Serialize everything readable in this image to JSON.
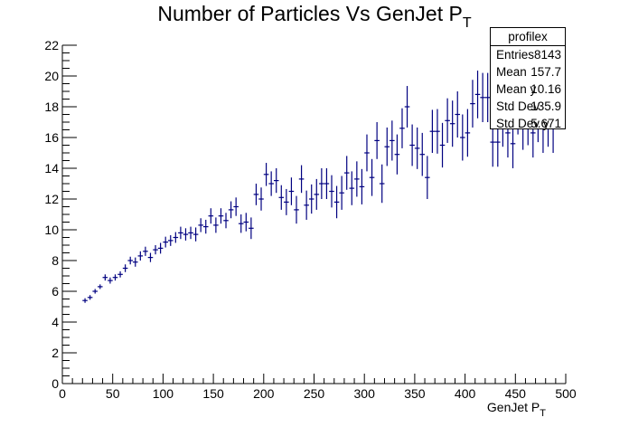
{
  "chart_data": {
    "type": "scatter",
    "title": "Number of Particles Vs GenJet P",
    "title_sub": "T",
    "xlabel": "GenJet P",
    "xlabel_sub": "T",
    "ylabel": "",
    "xlim": [
      0,
      500
    ],
    "ylim": [
      0,
      22
    ],
    "x_ticks": [
      0,
      50,
      100,
      150,
      200,
      250,
      300,
      350,
      400,
      450,
      500
    ],
    "y_ticks": [
      0,
      2,
      4,
      6,
      8,
      10,
      12,
      14,
      16,
      18,
      20,
      22
    ],
    "grid": false,
    "legend": "none",
    "marker_color": "#000080",
    "bin_half_width": 2.5,
    "series": [
      {
        "x": [
          22.5,
          27.5,
          32.5,
          37.5,
          42.5,
          47.5,
          52.5,
          57.5,
          62.5,
          67.5,
          72.5,
          77.5,
          82.5,
          87.5,
          92.5,
          97.5,
          102.5,
          107.5,
          112.5,
          117.5,
          122.5,
          127.5,
          132.5,
          137.5,
          142.5,
          147.5,
          152.5,
          157.5,
          162.5,
          167.5,
          172.5,
          177.5,
          182.5,
          187.5,
          192.5,
          197.5,
          202.5,
          207.5,
          212.5,
          217.5,
          222.5,
          227.5,
          232.5,
          237.5,
          242.5,
          247.5,
          252.5,
          257.5,
          262.5,
          267.5,
          272.5,
          277.5,
          282.5,
          287.5,
          292.5,
          297.5,
          302.5,
          307.5,
          312.5,
          317.5,
          322.5,
          327.5,
          332.5,
          337.5,
          342.5,
          347.5,
          352.5,
          357.5,
          362.5,
          367.5,
          372.5,
          377.5,
          382.5,
          387.5,
          392.5,
          397.5,
          402.5,
          407.5,
          412.5,
          417.5,
          422.5,
          427.5,
          432.5,
          437.5,
          442.5,
          447.5,
          452.5,
          457.5,
          462.5,
          467.5,
          472.5,
          477.5,
          482.5,
          487.5
        ],
        "y": [
          5.4,
          5.6,
          6.0,
          6.3,
          6.9,
          6.7,
          6.9,
          7.1,
          7.5,
          8.0,
          7.9,
          8.3,
          8.6,
          8.2,
          8.7,
          8.8,
          9.2,
          9.3,
          9.5,
          9.8,
          9.7,
          9.8,
          9.7,
          10.3,
          10.2,
          10.9,
          10.3,
          10.9,
          10.6,
          11.3,
          11.5,
          10.4,
          10.5,
          10.1,
          12.3,
          12.0,
          13.6,
          13.0,
          13.2,
          12.1,
          11.8,
          12.5,
          11.3,
          13.3,
          11.6,
          12.0,
          12.3,
          13.0,
          13.0,
          12.5,
          11.8,
          12.4,
          13.7,
          12.7,
          13.3,
          12.8,
          15.0,
          13.4,
          15.8,
          13.0,
          15.4,
          15.8,
          14.9,
          16.6,
          18.0,
          15.5,
          15.3,
          14.9,
          13.4,
          16.4,
          16.4,
          15.5,
          17.1,
          16.9,
          17.5,
          16.0,
          16.3,
          18.2,
          18.8,
          18.6,
          18.6,
          15.7,
          15.7,
          17.0,
          16.3,
          15.6,
          17.8,
          16.8,
          17.1,
          16.3,
          17.3,
          16.6,
          17.0,
          16.6
        ],
        "err": [
          0.15,
          0.15,
          0.15,
          0.15,
          0.2,
          0.2,
          0.2,
          0.2,
          0.25,
          0.25,
          0.3,
          0.3,
          0.3,
          0.3,
          0.3,
          0.35,
          0.35,
          0.35,
          0.35,
          0.4,
          0.4,
          0.4,
          0.45,
          0.45,
          0.45,
          0.5,
          0.5,
          0.5,
          0.5,
          0.55,
          0.6,
          0.6,
          0.6,
          0.7,
          0.7,
          0.75,
          0.75,
          0.8,
          0.8,
          0.8,
          0.85,
          0.9,
          0.9,
          0.9,
          0.95,
          0.95,
          1.0,
          1.0,
          1.0,
          1.05,
          1.05,
          1.1,
          1.1,
          1.1,
          1.15,
          1.15,
          1.2,
          1.2,
          1.2,
          1.25,
          1.25,
          1.3,
          1.3,
          1.3,
          1.35,
          1.35,
          1.35,
          1.4,
          1.4,
          1.4,
          1.45,
          1.45,
          1.45,
          1.5,
          1.5,
          1.5,
          1.55,
          1.55,
          1.55,
          1.6,
          1.6,
          1.6,
          1.6,
          1.6,
          1.6,
          1.6,
          1.6,
          1.6,
          1.6,
          1.6,
          1.6,
          1.6,
          1.6,
          1.6
        ]
      }
    ],
    "stats_box": {
      "name": "profilex",
      "rows": [
        {
          "label": "Entries",
          "value": "8143"
        },
        {
          "label": "Mean",
          "value": "157.7"
        },
        {
          "label": "Mean y",
          "value": "10.16"
        },
        {
          "label": "Std Dev",
          "value": "135.9"
        },
        {
          "label": "Std Dev y",
          "value": "5.671"
        }
      ]
    }
  }
}
